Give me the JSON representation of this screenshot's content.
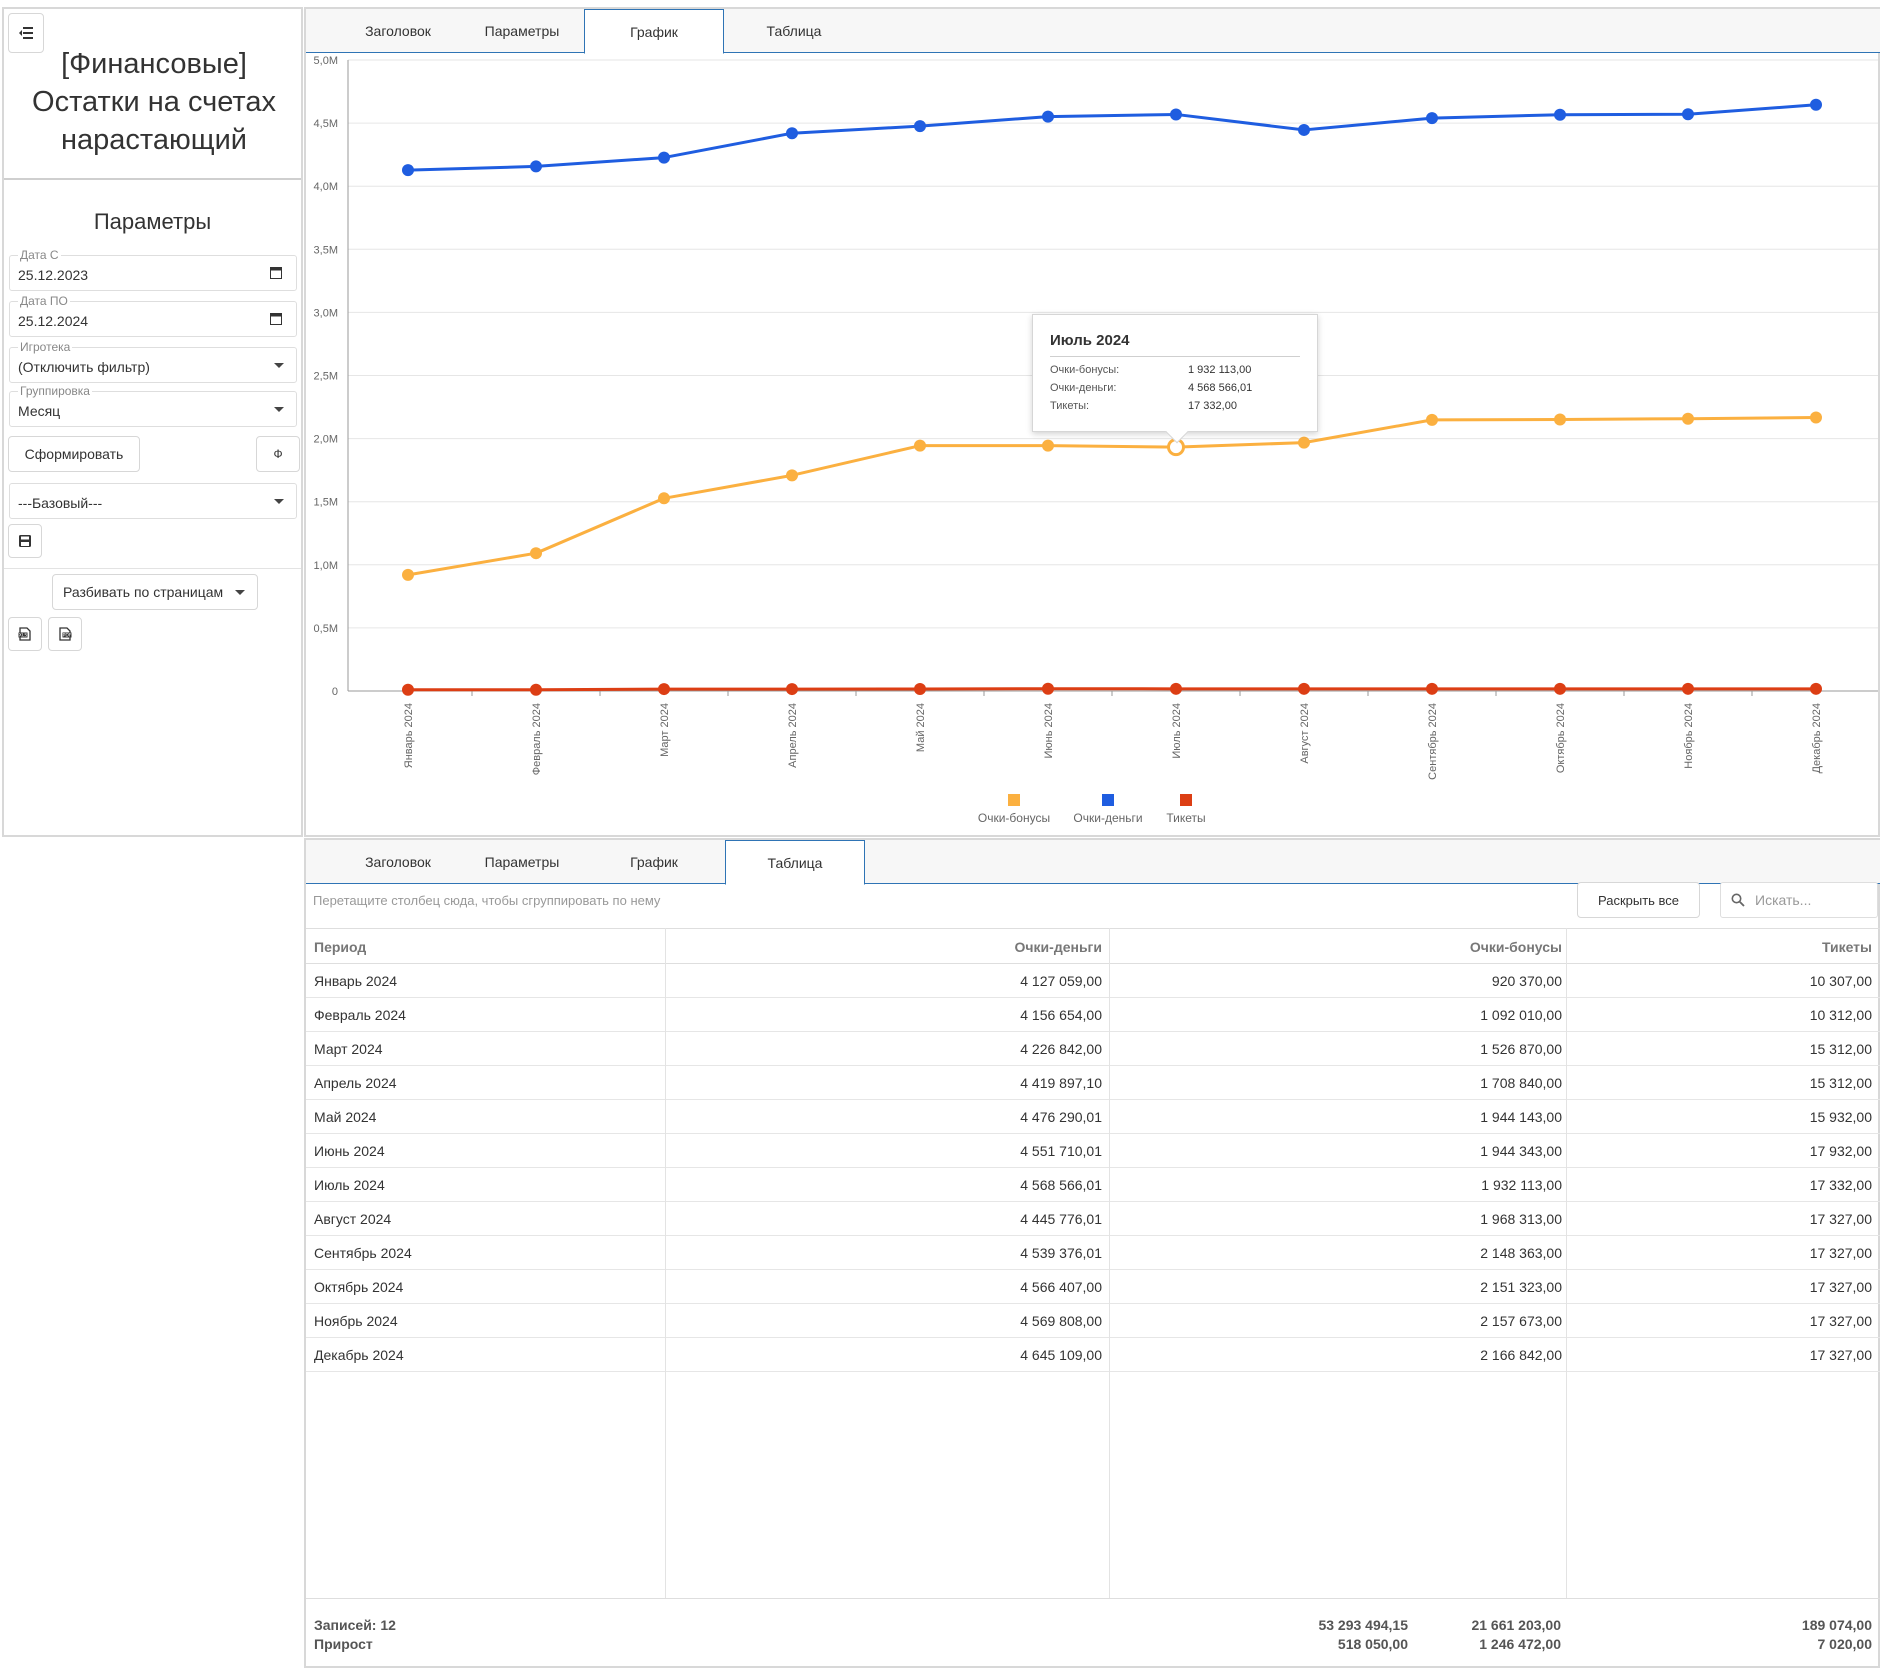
{
  "sidebar": {
    "title": "[Финансовые] Остатки на счетах нарастающий",
    "params_heading": "Параметры",
    "fields": {
      "date_from": {
        "label": "Дата С",
        "value": "25.12.2023"
      },
      "date_to": {
        "label": "Дата ПО",
        "value": "25.12.2024"
      },
      "gameroom": {
        "label": "Игротека",
        "value": "(Отключить фильтр)"
      },
      "grouping": {
        "label": "Группировка",
        "value": "Месяц"
      },
      "preset": {
        "value": "---Базовый---"
      }
    },
    "generate_label": "Сформировать",
    "filter_label": "Ф",
    "paging_label": "Разбивать по страницам",
    "icons": {
      "menu": "menu-collapse-icon",
      "calendar": "calendar-icon",
      "save": "save-icon",
      "export_xls": "xls-export-icon",
      "export_pdf": "pdf-export-icon"
    }
  },
  "tabs": [
    "Заголовок",
    "Параметры",
    "График",
    "Таблица"
  ],
  "chart_data": {
    "type": "line",
    "categories": [
      "Январь 2024",
      "Февраль 2024",
      "Март 2024",
      "Апрель 2024",
      "Май 2024",
      "Июнь 2024",
      "Июль 2024",
      "Август 2024",
      "Сентябрь 2024",
      "Октябрь 2024",
      "Ноябрь 2024",
      "Декабрь 2024"
    ],
    "series": [
      {
        "name": "Очки-бонусы",
        "color": "#fbb040",
        "values": [
          920370.0,
          1092010.0,
          1526870.0,
          1708840.0,
          1944143.0,
          1944343.0,
          1932113.0,
          1968313.0,
          2148363.0,
          2151323.0,
          2157673.0,
          2166842.0
        ]
      },
      {
        "name": "Очки-деньги",
        "color": "#1f5de0",
        "values": [
          4127059.0,
          4156654.0,
          4226842.0,
          4419897.1,
          4476290.01,
          4551710.01,
          4568566.01,
          4445776.01,
          4539376.01,
          4566407.0,
          4569808.0,
          4645109.0
        ]
      },
      {
        "name": "Тикеты",
        "color": "#dc3e14",
        "values": [
          10307.0,
          10312.0,
          15312.0,
          15312.0,
          15932.0,
          17932.0,
          17332.0,
          17327.0,
          17327.0,
          17327.0,
          17327.0,
          17327.0
        ]
      }
    ],
    "y_ticks": [
      "0",
      "0,5M",
      "1,0M",
      "1,5M",
      "2,0M",
      "2,5M",
      "3,0M",
      "3,5M",
      "4,0M",
      "4,5M",
      "5,0M"
    ],
    "ylim": [
      0,
      5000000
    ],
    "grid": true,
    "legend": "bottom-center",
    "tooltip": {
      "title": "Июль 2024",
      "rows": [
        {
          "label": "Очки-бонусы:",
          "value": "1 932 113,00"
        },
        {
          "label": "Очки-деньги:",
          "value": "4 568 566,01"
        },
        {
          "label": "Тикеты:",
          "value": "17 332,00"
        }
      ],
      "category_index": 6
    }
  },
  "table": {
    "group_hint": "Перетащите столбец сюда, чтобы сгруппировать по нему",
    "expand_all": "Раскрыть все",
    "search_placeholder": "Искать...",
    "columns": [
      "Период",
      "Очки-деньги",
      "Очки-бонусы",
      "Тикеты"
    ],
    "rows": [
      [
        "Январь 2024",
        "4 127 059,00",
        "920 370,00",
        "10 307,00"
      ],
      [
        "Февраль 2024",
        "4 156 654,00",
        "1 092 010,00",
        "10 312,00"
      ],
      [
        "Март 2024",
        "4 226 842,00",
        "1 526 870,00",
        "15 312,00"
      ],
      [
        "Апрель 2024",
        "4 419 897,10",
        "1 708 840,00",
        "15 312,00"
      ],
      [
        "Май 2024",
        "4 476 290,01",
        "1 944 143,00",
        "15 932,00"
      ],
      [
        "Июнь 2024",
        "4 551 710,01",
        "1 944 343,00",
        "17 932,00"
      ],
      [
        "Июль 2024",
        "4 568 566,01",
        "1 932 113,00",
        "17 332,00"
      ],
      [
        "Август 2024",
        "4 445 776,01",
        "1 968 313,00",
        "17 327,00"
      ],
      [
        "Сентябрь 2024",
        "4 539 376,01",
        "2 148 363,00",
        "17 327,00"
      ],
      [
        "Октябрь 2024",
        "4 566 407,00",
        "2 151 323,00",
        "17 327,00"
      ],
      [
        "Ноябрь 2024",
        "4 569 808,00",
        "2 157 673,00",
        "17 327,00"
      ],
      [
        "Декабрь 2024",
        "4 645 109,00",
        "2 166 842,00",
        "17 327,00"
      ]
    ],
    "footer": {
      "records_label": "Записей: 12",
      "growth_label": "Прирост",
      "totals": [
        "53 293 494,15",
        "21 661 203,00",
        "189 074,00"
      ],
      "growth": [
        "518 050,00",
        "1 246 472,00",
        "7 020,00"
      ]
    }
  }
}
